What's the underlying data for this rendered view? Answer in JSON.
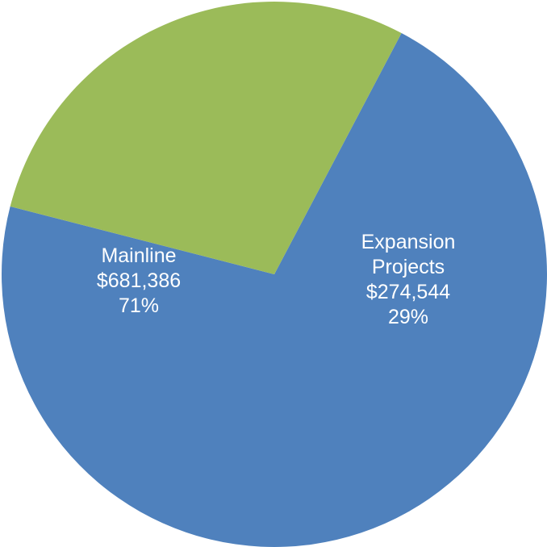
{
  "chart_data": {
    "type": "pie",
    "title": "",
    "slices": [
      {
        "label_lines": [
          "Mainline"
        ],
        "value_text": "$681,386",
        "percent_text": "71%",
        "value": 681386,
        "percent": 71,
        "color": "#4F81BD"
      },
      {
        "label_lines": [
          "Expansion",
          "Projects"
        ],
        "value_text": "$274,544",
        "percent_text": "29%",
        "value": 274544,
        "percent": 29,
        "color": "#9BBB59"
      }
    ],
    "legend": "none"
  }
}
